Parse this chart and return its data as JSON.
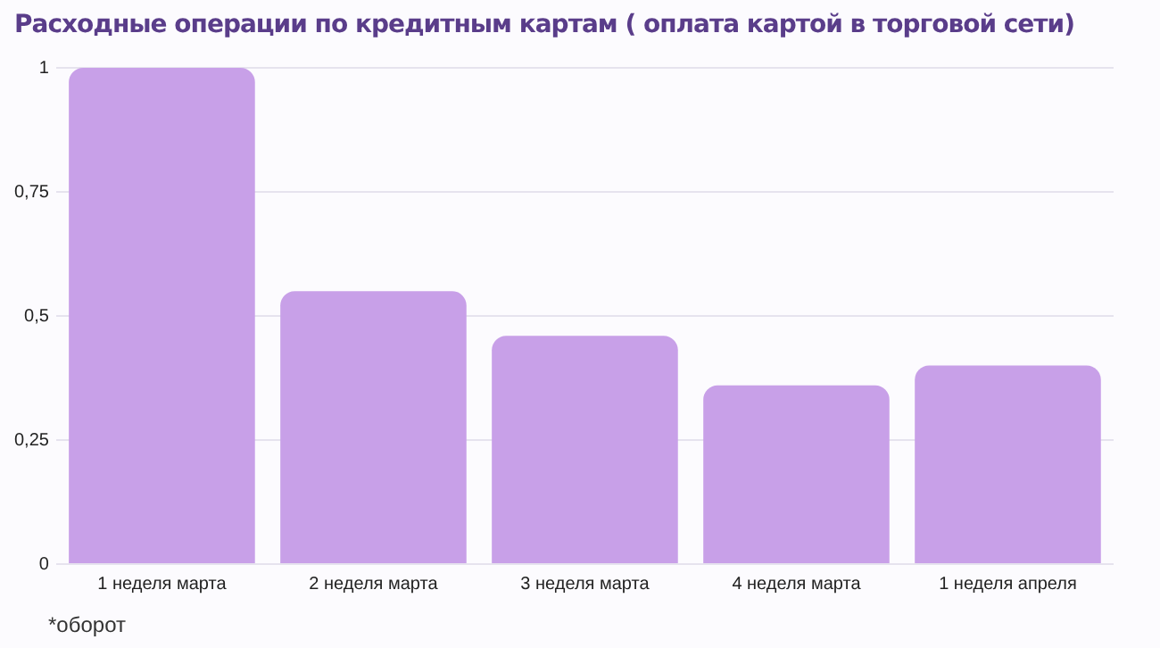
{
  "chart_data": {
    "type": "bar",
    "title": "Расходные операции по кредитным картам ( оплата картой в торговой сети)",
    "categories": [
      "1 неделя марта",
      "2 неделя марта",
      "3 неделя марта",
      "4 неделя марта",
      "1 неделя апреля"
    ],
    "values": [
      1,
      0.55,
      0.46,
      0.36,
      0.4
    ],
    "color": "#c8a0e8",
    "ylim": [
      0,
      1
    ],
    "yticks": [
      0,
      {
        "value": 0.25,
        "label": "0,25"
      },
      {
        "value": 0.5,
        "label": "0,5"
      },
      {
        "value": 0.75,
        "label": "0,75"
      },
      1
    ],
    "grid": "y",
    "annotations": [
      "*оборот"
    ]
  }
}
